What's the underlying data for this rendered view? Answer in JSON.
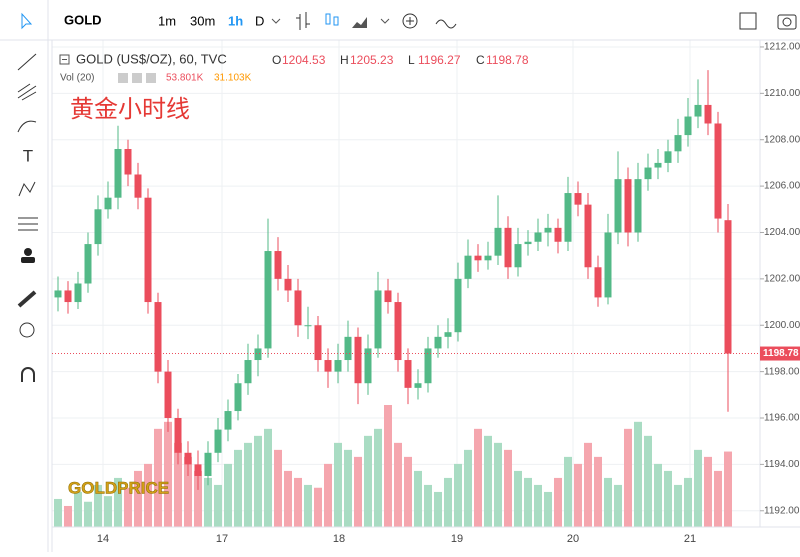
{
  "toolbar": {
    "symbol": "GOLD",
    "intervals": [
      "1m",
      "30m",
      "1h",
      "D"
    ]
  },
  "chart_data": {
    "type": "candlestick",
    "title": "GOLD (US$/OZ), 60, TVC",
    "annotation": "黄金小时线",
    "watermark": "GOLDPRICE",
    "volume_title": "Vol (20)",
    "volume_legend": [
      "53.801K",
      "31.103K"
    ],
    "ohlc_labels": [
      "O",
      "H",
      "L",
      "C"
    ],
    "up_color": "#53b987",
    "down_color": "#eb4d5c",
    "up_volume_color": "#a9dcc3",
    "down_volume_color": "#f5a6ae",
    "xlim": [
      -0.5,
      70.2
    ],
    "xticks": [
      {
        "value": 4.5,
        "label": "14"
      },
      {
        "value": 16.4,
        "label": "17"
      },
      {
        "value": 28.1,
        "label": "18"
      },
      {
        "value": 39.9,
        "label": "19"
      },
      {
        "value": 51.5,
        "label": "20"
      },
      {
        "value": 63.2,
        "label": "21"
      }
    ],
    "ylim": [
      1191.3,
      1212.3
    ],
    "yticks": [
      {
        "value": 1192,
        "label": "1192.00"
      },
      {
        "value": 1194,
        "label": "1194.00"
      },
      {
        "value": 1196,
        "label": "1196.00"
      },
      {
        "value": 1198,
        "label": "1198.00"
      },
      {
        "value": 1200,
        "label": "1200.00"
      },
      {
        "value": 1202,
        "label": "1202.00"
      },
      {
        "value": 1204,
        "label": "1204.00"
      },
      {
        "value": 1206,
        "label": "1206.00"
      },
      {
        "value": 1208,
        "label": "1208.00"
      },
      {
        "value": 1210,
        "label": "1210.00"
      },
      {
        "value": 1212,
        "label": "1212.00"
      }
    ],
    "grid": true,
    "open": [
      1201.2,
      1201.5,
      1201,
      1201.8,
      1203.5,
      1205,
      1205.5,
      1207.6,
      1206.5,
      1205.5,
      1201,
      1198,
      1196,
      1194.5,
      1194,
      1193.5,
      1194.5,
      1195.5,
      1196.3,
      1197.5,
      1198.5,
      1199,
      1203.2,
      1202,
      1201.5,
      1200,
      1200,
      1198.5,
      1198,
      1198.5,
      1199.5,
      1197.5,
      1199,
      1201.5,
      1201,
      1198.5,
      1197.3,
      1197.5,
      1199,
      1199.5,
      1199.7,
      1202,
      1203,
      1202.8,
      1203,
      1204.2,
      1202.5,
      1203.5,
      1203.6,
      1204,
      1204.2,
      1203.6,
      1205.7,
      1205.2,
      1202.5,
      1201.2,
      1204,
      1206.3,
      1204,
      1206.3,
      1206.8,
      1207,
      1207.5,
      1208.2,
      1209,
      1209.5,
      1208.7,
      1204.53
    ],
    "high": [
      1202.1,
      1201.9,
      1202.3,
      1204,
      1205.6,
      1206.2,
      1208.6,
      1208,
      1207,
      1205.9,
      1201.4,
      1198.5,
      1196.4,
      1195,
      1194.6,
      1195,
      1196,
      1196.8,
      1197.9,
      1199.2,
      1199.6,
      1204.6,
      1203.8,
      1202.6,
      1202,
      1200.8,
      1200.4,
      1199,
      1199.2,
      1200.2,
      1199.9,
      1199.6,
      1202.3,
      1202,
      1201.4,
      1199,
      1198.1,
      1199.5,
      1200,
      1200.3,
      1202.7,
      1203.7,
      1203.5,
      1203.6,
      1205.6,
      1204.7,
      1204.2,
      1204.1,
      1204.6,
      1204.8,
      1204.6,
      1206.4,
      1206.2,
      1205.7,
      1203,
      1204.8,
      1207.5,
      1206.8,
      1207,
      1207.4,
      1207.6,
      1208,
      1208.9,
      1209.8,
      1210.6,
      1211,
      1209.2,
      1205.23
    ],
    "low": [
      1200.6,
      1200.5,
      1200.7,
      1201.4,
      1203,
      1204.6,
      1205,
      1206,
      1205,
      1200.5,
      1197.5,
      1195.4,
      1194,
      1193.5,
      1192.9,
      1193.1,
      1194.1,
      1195,
      1195.9,
      1197,
      1197.8,
      1198.6,
      1201.5,
      1201,
      1199.5,
      1199.4,
      1198,
      1197.3,
      1197.5,
      1198,
      1196.6,
      1197,
      1198.6,
      1200.5,
      1198,
      1196.6,
      1196.8,
      1197.1,
      1198.6,
      1199,
      1199.3,
      1201.6,
      1202.3,
      1202.4,
      1202.6,
      1202,
      1202.1,
      1203,
      1203.2,
      1203.4,
      1203.1,
      1203.2,
      1204.7,
      1202,
      1200.8,
      1200.9,
      1203.5,
      1203.4,
      1203.6,
      1205.8,
      1206.3,
      1206.6,
      1207,
      1207.7,
      1208.5,
      1208.2,
      1204,
      1196.27
    ],
    "close": [
      1201.5,
      1201,
      1201.8,
      1203.5,
      1205,
      1205.5,
      1207.6,
      1206.5,
      1205.5,
      1201,
      1198,
      1196,
      1194.5,
      1194,
      1193.5,
      1194.5,
      1195.5,
      1196.3,
      1197.5,
      1198.5,
      1199,
      1203.2,
      1202,
      1201.5,
      1200,
      1200,
      1198.5,
      1198,
      1198.5,
      1199.5,
      1197.5,
      1199,
      1201.5,
      1201,
      1198.5,
      1197.3,
      1197.5,
      1199,
      1199.5,
      1199.7,
      1202,
      1203,
      1202.8,
      1203,
      1204.2,
      1202.5,
      1203.5,
      1203.6,
      1204,
      1204.2,
      1203.6,
      1205.7,
      1205.2,
      1202.5,
      1201.2,
      1204,
      1206.3,
      1204,
      1206.3,
      1206.8,
      1207,
      1207.5,
      1208.2,
      1209,
      1209.5,
      1208.7,
      1204.6,
      1198.78
    ],
    "volume": [
      20,
      15,
      25,
      18,
      30,
      22,
      35,
      28,
      40,
      45,
      70,
      75,
      60,
      50,
      40,
      35,
      30,
      45,
      55,
      60,
      65,
      70,
      55,
      40,
      35,
      30,
      28,
      45,
      60,
      55,
      50,
      65,
      70,
      87,
      60,
      50,
      40,
      30,
      25,
      35,
      45,
      55,
      70,
      65,
      60,
      55,
      40,
      35,
      30,
      25,
      35,
      50,
      45,
      60,
      50,
      35,
      30,
      70,
      75,
      65,
      45,
      40,
      30,
      35,
      55,
      50,
      40,
      53.801
    ]
  }
}
